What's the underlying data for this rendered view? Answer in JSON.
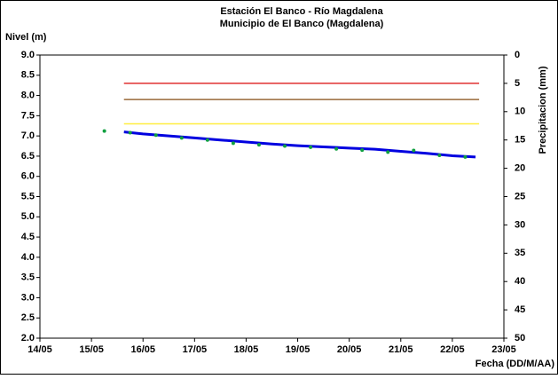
{
  "chart_data": {
    "type": "line",
    "title": "Estación El Banco - Río Magdalena",
    "subtitle": "Municipio de El Banco (Magdalena)",
    "y_label": "Nivel (m)",
    "y2_label": "Precipitacion (mm)",
    "x_label": "Fecha (DD/M/AA)",
    "xlim": [
      14,
      23
    ],
    "xticks": [
      {
        "value": 14,
        "label": "14/05"
      },
      {
        "value": 15,
        "label": "15/05"
      },
      {
        "value": 16,
        "label": "16/05"
      },
      {
        "value": 17,
        "label": "17/05"
      },
      {
        "value": 18,
        "label": "18/05"
      },
      {
        "value": 19,
        "label": "19/05"
      },
      {
        "value": 20,
        "label": "20/05"
      },
      {
        "value": 21,
        "label": "21/05"
      },
      {
        "value": 22,
        "label": "22/05"
      },
      {
        "value": 23,
        "label": "23/05"
      }
    ],
    "ylim": [
      2,
      9
    ],
    "yticks": [
      {
        "value": 2,
        "label": "2.0"
      },
      2.5,
      {
        "value": 3,
        "label": "3.0"
      },
      3.5,
      {
        "value": 4,
        "label": "4.0"
      },
      4.5,
      {
        "value": 5,
        "label": "5.0"
      },
      5.5,
      {
        "value": 6,
        "label": "6.0"
      },
      6.5,
      {
        "value": 7,
        "label": "7.0"
      },
      7.5,
      {
        "value": 8,
        "label": "8.0"
      },
      8.5,
      {
        "value": 9,
        "label": "9.0"
      }
    ],
    "y2lim": [
      0,
      50
    ],
    "y2_inverted": true,
    "y2ticks": [
      0,
      5,
      10,
      15,
      20,
      25,
      30,
      35,
      40,
      45,
      50
    ],
    "series": [
      {
        "color": "#e03030",
        "style": "line",
        "width": 1.5,
        "x": [
          15.63,
          22.52
        ],
        "values": [
          8.3,
          8.3
        ]
      },
      {
        "color": "#9a6a3a",
        "style": "line",
        "width": 1.5,
        "x": [
          15.63,
          22.52
        ],
        "values": [
          7.9,
          7.9
        ]
      },
      {
        "color": "#ffee40",
        "style": "line",
        "width": 1.5,
        "x": [
          15.63,
          22.52
        ],
        "values": [
          7.3,
          7.3
        ]
      },
      {
        "color": "#0000e0",
        "style": "line",
        "width": 3,
        "x": [
          15.63,
          16,
          16.5,
          17,
          17.5,
          18,
          18.5,
          19,
          19.5,
          20,
          20.5,
          21,
          21.5,
          22,
          22.45
        ],
        "values": [
          7.1,
          7.05,
          7.0,
          6.95,
          6.9,
          6.85,
          6.8,
          6.76,
          6.73,
          6.7,
          6.67,
          6.62,
          6.57,
          6.51,
          6.48
        ]
      },
      {
        "color": "#10a040",
        "style": "points",
        "x": [
          15.25,
          15.75,
          16.25,
          16.75,
          17.25,
          17.75,
          18.25,
          18.75,
          19.25,
          19.75,
          20.25,
          20.75,
          21.25,
          21.75,
          22.25
        ],
        "values": [
          7.12,
          7.08,
          7.02,
          6.95,
          6.9,
          6.82,
          6.78,
          6.75,
          6.72,
          6.68,
          6.65,
          6.6,
          6.64,
          6.52,
          6.48
        ]
      }
    ]
  }
}
